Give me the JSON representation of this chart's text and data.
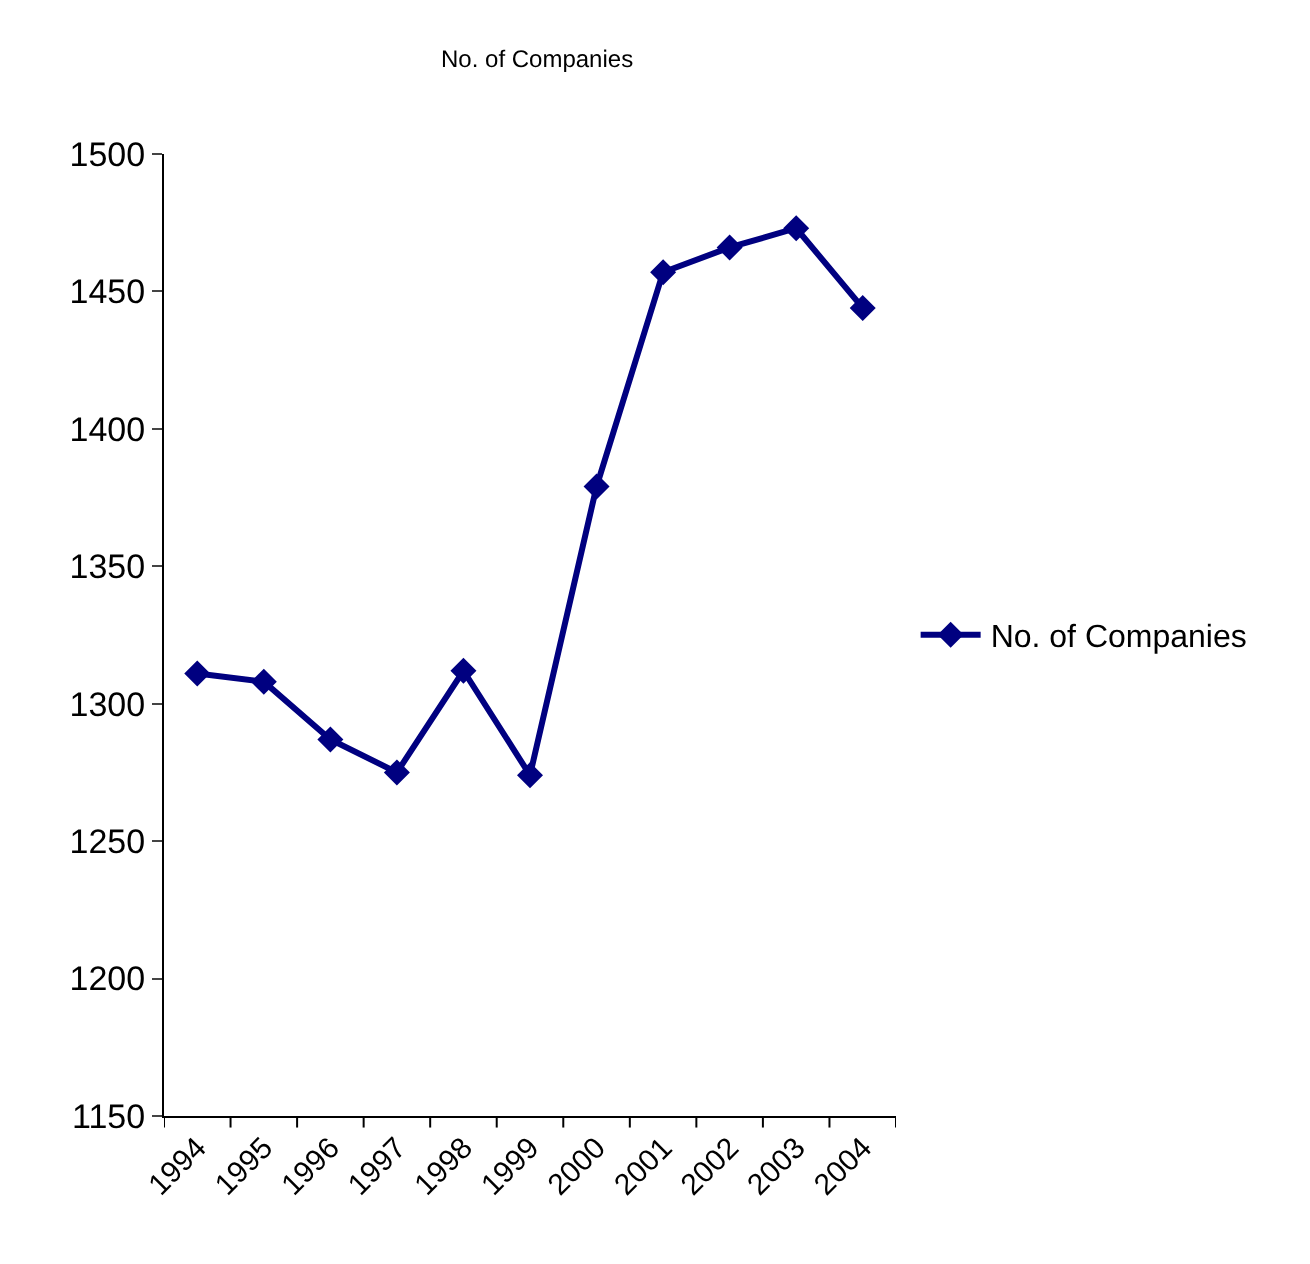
{
  "chart_data": {
    "type": "line",
    "title": "No. of Companies",
    "categories": [
      "1994",
      "1995",
      "1996",
      "1997",
      "1998",
      "1999",
      "2000",
      "2001",
      "2002",
      "2003",
      "2004"
    ],
    "series": [
      {
        "name": "No. of Companies",
        "color": "#000080",
        "values": [
          1311,
          1308,
          1287,
          1275,
          1312,
          1274,
          1379,
          1457,
          1466,
          1473,
          1444
        ]
      }
    ],
    "ylim": [
      1150,
      1500
    ],
    "yticks": [
      1150,
      1200,
      1250,
      1300,
      1350,
      1400,
      1450,
      1500
    ],
    "grid": false,
    "legend": "right",
    "marker": "diamond",
    "line_style": "solid"
  }
}
